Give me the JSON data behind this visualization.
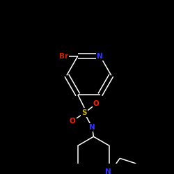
{
  "background_color": "#000000",
  "bond_color": "#ffffff",
  "atom_colors": {
    "N": "#3333ff",
    "O": "#ff2200",
    "S": "#ccaa00",
    "Br": "#cc2200",
    "C": "#ffffff"
  },
  "figsize": [
    2.5,
    2.5
  ],
  "dpi": 100
}
